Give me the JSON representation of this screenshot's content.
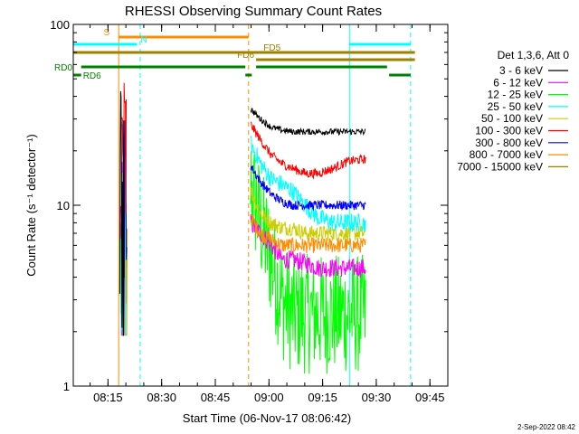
{
  "title": "RHESSI Observing Summary Count Rates",
  "footer_timestamp": "2-Sep-2022 08:42",
  "chart_data": {
    "type": "line",
    "title": "RHESSI Observing Summary Count Rates",
    "xlabel": "Start Time (06-Nov-17 08:06:42)",
    "ylabel": "Count Rate (s⁻¹ detector⁻¹)",
    "yscale": "log",
    "ylim": [
      1,
      100
    ],
    "xlim": [
      8.0883,
      9.8333
    ],
    "x_ticks": [
      8.25,
      8.5,
      8.75,
      9.0,
      9.25,
      9.5,
      9.75
    ],
    "x_tick_labels": [
      "08:15",
      "08:30",
      "08:45",
      "09:00",
      "09:15",
      "09:30",
      "09:45"
    ],
    "y_ticks": [
      1,
      10,
      100
    ],
    "y_tick_labels": [
      "1",
      "10",
      "100"
    ],
    "legend": {
      "header": "Det 1,3,6, Att 0",
      "position": "right"
    },
    "series": [
      {
        "name": "3 - 6 keV",
        "color": "#000000",
        "early_peak": 45,
        "values": [
          34,
          30,
          27,
          26,
          25.5,
          25.5,
          25.5,
          25.5,
          25.5,
          25.5
        ]
      },
      {
        "name": "6 - 12 keV",
        "color": "#ff00ff",
        "early_peak": 20,
        "values": [
          8.0,
          7.0,
          6.0,
          5.0,
          5.0,
          4.8,
          4.5,
          4.5,
          4.5,
          4.5
        ]
      },
      {
        "name": "12 - 25 keV",
        "color": "#00ff00",
        "early_peak": 15,
        "values": [
          13.0,
          8.0,
          5.0,
          3.0,
          2.5,
          2.5,
          2.5,
          2.5,
          2.5,
          2.5
        ]
      },
      {
        "name": "25 - 50 keV",
        "color": "#00ffff",
        "early_peak": 25,
        "values": [
          22,
          17,
          14,
          13,
          12,
          10,
          8.5,
          8.0,
          8.0,
          8.0
        ]
      },
      {
        "name": "50 - 100 keV",
        "color": "#cccc00",
        "early_peak": 18,
        "values": [
          12.0,
          9.0,
          8.0,
          7.5,
          7.5,
          7.0,
          7.0,
          7.0,
          7.0,
          7.0
        ]
      },
      {
        "name": "100 - 300 keV",
        "color": "#ff0000",
        "early_peak": 55,
        "values": [
          28,
          23,
          19,
          17,
          16,
          15,
          15,
          16,
          17.5,
          18
        ]
      },
      {
        "name": "300 - 800 keV",
        "color": "#0000ff",
        "early_peak": 32,
        "values": [
          16.5,
          13.5,
          11.5,
          10.5,
          10.0,
          10.0,
          10.0,
          10.0,
          10.0,
          10.0
        ]
      },
      {
        "name": "800 - 7000 keV",
        "color": "#ff8c00",
        "early_peak": 16,
        "values": [
          8.5,
          7.0,
          6.5,
          6.0,
          6.0,
          6.0,
          6.0,
          6.0,
          6.0,
          6.0
        ]
      },
      {
        "name": "7000 - 15000 keV",
        "color": "#a08000",
        "early_peak": 5,
        "values": []
      }
    ],
    "series_x": [
      8.915,
      8.96,
      9.01,
      9.06,
      9.11,
      9.17,
      9.23,
      9.3,
      9.37,
      9.45
    ],
    "early_burst_x": [
      8.305,
      8.325
    ],
    "vertical_markers": [
      {
        "x": 8.3,
        "color": "#ff8c00",
        "style": "solid"
      },
      {
        "x": 8.4,
        "color": "#00ffff",
        "style": "dashed"
      },
      {
        "x": 8.905,
        "color": "#ff8c00",
        "style": "dashed"
      },
      {
        "x": 9.375,
        "color": "#00ffff",
        "style": "solid"
      },
      {
        "x": 9.66,
        "color": "#00ffff",
        "style": "dashed"
      }
    ],
    "flag_bars": [
      {
        "label": "S",
        "color": "#ff8c00",
        "segments": [
          [
            8.3,
            8.905
          ]
        ],
        "level": 0
      },
      {
        "label": "N",
        "color": "#00ffff",
        "segments": [
          [
            8.0883,
            8.385
          ],
          [
            9.375,
            9.66
          ]
        ],
        "level": 1
      },
      {
        "label": "FD5",
        "color": "#a08000",
        "segments": [
          [
            8.0883,
            9.68
          ]
        ],
        "level": 2
      },
      {
        "label": "FD6",
        "color": "#a08000",
        "segments": [
          [
            8.94,
            9.68
          ]
        ],
        "level": 3
      },
      {
        "label": "RD0",
        "color": "#008000",
        "segments": [
          [
            8.125,
            8.89
          ],
          [
            8.94,
            9.55
          ]
        ],
        "level": 4
      },
      {
        "label": "RD6",
        "color": "#008000",
        "segments": [
          [
            8.09,
            8.125
          ],
          [
            8.89,
            8.92
          ],
          [
            9.56,
            9.66
          ]
        ],
        "level": 5
      }
    ]
  }
}
